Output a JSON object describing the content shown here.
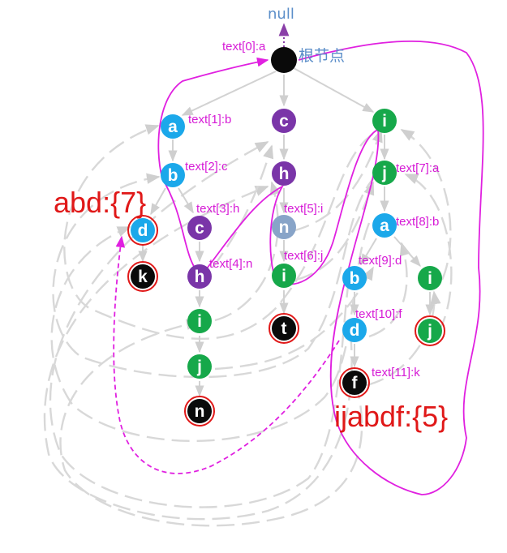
{
  "null_label": "null",
  "root_label": "根节点",
  "text_labels": [
    "text[0]:a",
    "text[1]:b",
    "text[2]:c",
    "text[3]:h",
    "text[4]:n",
    "text[5]:i",
    "text[6]:j",
    "text[7]:a",
    "text[8]:b",
    "text[9]:d",
    "text[10]:f",
    "text[11]:k"
  ],
  "outputs": {
    "abd": "abd:{7}",
    "ijabdf": "ijabdf:{5}"
  },
  "nodes": {
    "a1": "a",
    "b1": "b",
    "c1": "c",
    "h1": "h",
    "d1": "d",
    "k1": "k",
    "i1": "i",
    "j1": "j",
    "n1": "n",
    "c2": "c",
    "h2": "h",
    "n2": "n",
    "i2": "i",
    "t2": "t",
    "i3": "i",
    "j3": "j",
    "a3": "a",
    "b3": "b",
    "d3": "d",
    "f3": "f",
    "i4": "i",
    "j4": "j"
  },
  "colors": {
    "blue": "#1ba8ea",
    "purple": "#7a35a8",
    "green": "#16a84a",
    "steel": "#88a4c8",
    "black": "#0a0a0a",
    "terminal_ring": "#e01818",
    "label": "#d61bd6",
    "output": "#e01818"
  }
}
